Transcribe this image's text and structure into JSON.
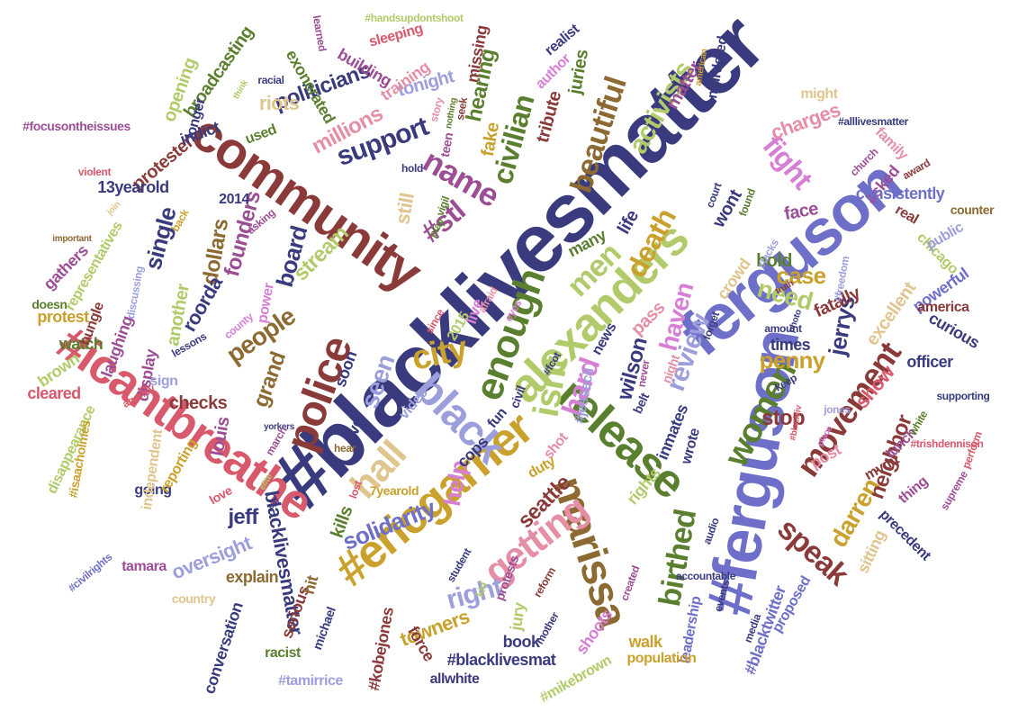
{
  "palette": {
    "navy": "#3a3b7e",
    "periwinkle": "#6d6fc9",
    "lavender": "#9d9fdd",
    "olive": "#5a7f2f",
    "lime": "#b2cb6a",
    "maroon": "#8b3a3a",
    "rose": "#d8596b",
    "pink": "#e58fa6",
    "magenta": "#9c4e95",
    "orchid": "#d67fd4",
    "gold": "#c9a12c",
    "brown": "#8c6a32",
    "tan": "#dfc58e",
    "plum": "#7b4173"
  },
  "words": [
    {
      "text": "#blacklivesmatter",
      "color": "navy"
    },
    {
      "text": "ferguson",
      "color": "periwinkle"
    },
    {
      "text": "#ferguson",
      "color": "periwinkle"
    },
    {
      "text": "community",
      "color": "maroon"
    },
    {
      "text": "#icantbreathe",
      "color": "rose"
    },
    {
      "text": "alexanders",
      "color": "lime"
    },
    {
      "text": "#ericgarner",
      "color": "gold"
    },
    {
      "text": "marissa",
      "color": "brown"
    },
    {
      "text": "release",
      "color": "olive"
    },
    {
      "text": "police",
      "color": "maroon"
    },
    {
      "text": "enough",
      "color": "olive"
    },
    {
      "text": "black",
      "color": "lavender"
    },
    {
      "text": "getting",
      "color": "pink"
    },
    {
      "text": "hall",
      "color": "tan"
    },
    {
      "text": "city",
      "color": "gold"
    },
    {
      "text": "isnt",
      "color": "lime"
    },
    {
      "text": "movement",
      "color": "maroon"
    },
    {
      "text": "women",
      "color": "olive"
    },
    {
      "text": "speak",
      "color": "maroon"
    },
    {
      "text": "birthed",
      "color": "olive"
    },
    {
      "text": "fight",
      "color": "orchid"
    },
    {
      "text": "beautiful",
      "color": "brown"
    },
    {
      "text": "civilian",
      "color": "olive"
    },
    {
      "text": "activists",
      "color": "lime"
    },
    {
      "text": "death",
      "color": "gold"
    },
    {
      "text": "men",
      "color": "lime"
    },
    {
      "text": "need",
      "color": "lime"
    },
    {
      "text": "case",
      "color": "gold"
    },
    {
      "text": "review",
      "color": "lavender"
    },
    {
      "text": "haven",
      "color": "orchid"
    },
    {
      "text": "jerrys",
      "color": "navy"
    },
    {
      "text": "penny",
      "color": "gold"
    },
    {
      "text": "hard",
      "color": "orchid"
    },
    {
      "text": "wilson",
      "color": "navy"
    },
    {
      "text": "seen",
      "color": "lavender"
    },
    {
      "text": "right",
      "color": "lavender"
    },
    {
      "text": "solidarity",
      "color": "periwinkle"
    },
    {
      "text": "seattle",
      "color": "maroon"
    },
    {
      "text": "help",
      "color": "orchid"
    },
    {
      "text": "darren",
      "color": "gold"
    },
    {
      "text": "neighbor",
      "color": "maroon"
    },
    {
      "text": "show",
      "color": "rose"
    },
    {
      "text": "stop",
      "color": "maroon"
    },
    {
      "text": "name",
      "color": "magenta"
    },
    {
      "text": "support",
      "color": "navy"
    },
    {
      "text": "millions",
      "color": "pink"
    },
    {
      "text": "politicians",
      "color": "navy"
    },
    {
      "text": "hearing",
      "color": "olive"
    },
    {
      "text": "#stl",
      "color": "magenta"
    },
    {
      "text": "single",
      "color": "navy"
    },
    {
      "text": "board",
      "color": "navy"
    },
    {
      "text": "founders",
      "color": "magenta"
    },
    {
      "text": "dollars",
      "color": "brown"
    },
    {
      "text": "stream",
      "color": "lime"
    },
    {
      "text": "still",
      "color": "tan"
    },
    {
      "text": "life",
      "color": "navy"
    },
    {
      "text": "people",
      "color": "brown"
    },
    {
      "text": "grand",
      "color": "brown"
    },
    {
      "text": "roorda",
      "color": "navy"
    },
    {
      "text": "jeff",
      "color": "navy"
    },
    {
      "text": "louis",
      "color": "magenta"
    },
    {
      "text": "oversight",
      "color": "lavender"
    },
    {
      "text": "blacklivesmatter",
      "color": "navy"
    },
    {
      "text": "#blacklivesmat",
      "color": "navy"
    },
    {
      "text": "towners",
      "color": "gold"
    },
    {
      "text": "book",
      "color": "navy"
    },
    {
      "text": "jury",
      "color": "lime"
    },
    {
      "text": "shoots",
      "color": "orchid"
    },
    {
      "text": "walk",
      "color": "gold"
    },
    {
      "text": "force",
      "color": "maroon"
    },
    {
      "text": "#kobejones",
      "color": "maroon"
    },
    {
      "text": "conversation",
      "color": "navy"
    },
    {
      "text": "explain",
      "color": "brown"
    },
    {
      "text": "serious",
      "color": "maroon"
    },
    {
      "text": "kills",
      "color": "olive"
    },
    {
      "text": "checks",
      "color": "maroon"
    },
    {
      "text": "protesters",
      "color": "maroon"
    },
    {
      "text": "13yearold",
      "color": "navy"
    },
    {
      "text": "2014",
      "color": "navy"
    },
    {
      "text": "indict",
      "color": "navy"
    },
    {
      "text": "riots",
      "color": "tan"
    },
    {
      "text": "used",
      "color": "olive"
    },
    {
      "text": "tonight",
      "color": "lavender"
    },
    {
      "text": "training",
      "color": "pink"
    },
    {
      "text": "exonerated",
      "color": "olive"
    },
    {
      "text": "opening",
      "color": "lime"
    },
    {
      "text": "broadcasting",
      "color": "olive"
    },
    {
      "text": "building",
      "color": "magenta"
    },
    {
      "text": "juries",
      "color": "olive"
    },
    {
      "text": "tribute",
      "color": "maroon"
    },
    {
      "text": "fake",
      "color": "gold"
    },
    {
      "text": "matter",
      "color": "magenta"
    },
    {
      "text": "charges",
      "color": "pink"
    },
    {
      "text": "family",
      "color": "pink"
    },
    {
      "text": "asked",
      "color": "magenta"
    },
    {
      "text": "consistently",
      "color": "periwinkle"
    },
    {
      "text": "face",
      "color": "magenta"
    },
    {
      "text": "wont",
      "color": "navy"
    },
    {
      "text": "bold",
      "color": "olive"
    },
    {
      "text": "fatally",
      "color": "maroon"
    },
    {
      "text": "crowd",
      "color": "tan"
    },
    {
      "text": "times",
      "color": "navy"
    },
    {
      "text": "officer",
      "color": "navy"
    },
    {
      "text": "excellent",
      "color": "tan"
    },
    {
      "text": "powerful",
      "color": "periwinkle"
    },
    {
      "text": "curious",
      "color": "navy"
    },
    {
      "text": "america",
      "color": "maroon"
    },
    {
      "text": "chicago",
      "color": "lime"
    },
    {
      "text": "public",
      "color": "lavender"
    },
    {
      "text": "counter",
      "color": "brown"
    },
    {
      "text": "real",
      "color": "maroon"
    },
    {
      "text": "many",
      "color": "olive"
    },
    {
      "text": "live",
      "color": "orchid"
    },
    {
      "text": "video",
      "color": "lavender"
    },
    {
      "text": "fun",
      "color": "navy"
    },
    {
      "text": "cops",
      "color": "navy"
    },
    {
      "text": "soon",
      "color": "navy"
    },
    {
      "text": "ever",
      "color": "navy"
    },
    {
      "text": "pass",
      "color": "pink"
    },
    {
      "text": "news",
      "color": "navy"
    },
    {
      "text": "inmates",
      "color": "navy"
    },
    {
      "text": "wrote",
      "color": "navy"
    },
    {
      "text": "post",
      "color": "pink"
    },
    {
      "text": "sitting",
      "color": "tan"
    },
    {
      "text": "precedent",
      "color": "navy"
    },
    {
      "text": "lunch",
      "color": "magenta"
    },
    {
      "text": "mvmt",
      "color": "maroon"
    },
    {
      "text": "leadership",
      "color": "periwinkle"
    },
    {
      "text": "proposed",
      "color": "periwinkle"
    },
    {
      "text": "#blacktwitter",
      "color": "periwinkle"
    },
    {
      "text": "population",
      "color": "gold"
    },
    {
      "text": "rights",
      "color": "lime"
    },
    {
      "text": "duty",
      "color": "gold"
    },
    {
      "text": "hit",
      "color": "brown"
    },
    {
      "text": "#tamirrice",
      "color": "lavender"
    },
    {
      "text": "racist",
      "color": "olive"
    },
    {
      "text": "allwhite",
      "color": "navy"
    },
    {
      "text": "#mikebrown",
      "color": "lime"
    },
    {
      "text": "michael",
      "color": "navy"
    },
    {
      "text": "tamara",
      "color": "magenta"
    },
    {
      "text": "country",
      "color": "tan"
    },
    {
      "text": "another",
      "color": "lime"
    },
    {
      "text": "display",
      "color": "magenta"
    },
    {
      "text": "laughing",
      "color": "magenta"
    },
    {
      "text": "protest",
      "color": "gold"
    },
    {
      "text": "watch",
      "color": "olive"
    },
    {
      "text": "sign",
      "color": "lavender"
    },
    {
      "text": "cleared",
      "color": "rose"
    },
    {
      "text": "brown",
      "color": "lime"
    },
    {
      "text": "going",
      "color": "navy"
    },
    {
      "text": "love",
      "color": "rose"
    },
    {
      "text": "reporting",
      "color": "gold"
    },
    {
      "text": "independent",
      "color": "tan"
    },
    {
      "text": "disappearance",
      "color": "lime"
    },
    {
      "text": "gathers",
      "color": "magenta"
    },
    {
      "text": "bungle",
      "color": "maroon"
    },
    {
      "text": "representatives",
      "color": "lime"
    },
    {
      "text": "doesn",
      "color": "olive"
    },
    {
      "text": "power",
      "color": "orchid"
    },
    {
      "text": "thing",
      "color": "magenta"
    },
    {
      "text": "#civilrights",
      "color": "periwinkle"
    },
    {
      "text": "#focusontheissues",
      "color": "magenta"
    },
    {
      "text": "#handsupdontshoot",
      "color": "lime"
    },
    {
      "text": "#alllivesmatter",
      "color": "navy"
    },
    {
      "text": "#trishdennison",
      "color": "rose"
    },
    {
      "text": "#isaacholmes",
      "color": "gold"
    },
    {
      "text": "#jessecli",
      "color": "lavender"
    },
    {
      "text": "#fcot",
      "color": "navy"
    },
    {
      "text": "longer",
      "color": "navy"
    },
    {
      "text": "sleeping",
      "color": "rose"
    },
    {
      "text": "missing",
      "color": "maroon"
    },
    {
      "text": "realist",
      "color": "navy"
    },
    {
      "text": "author",
      "color": "orchid"
    },
    {
      "text": "murdered",
      "color": "navy"
    },
    {
      "text": "might",
      "color": "tan"
    },
    {
      "text": "2015",
      "color": "lime"
    },
    {
      "text": "7yearold",
      "color": "gold"
    },
    {
      "text": "shot",
      "color": "pink"
    },
    {
      "text": "afraid",
      "color": "pink"
    },
    {
      "text": "civil",
      "color": "navy"
    },
    {
      "text": "belt",
      "color": "navy"
    },
    {
      "text": "night",
      "color": "pink"
    },
    {
      "text": "hold",
      "color": "navy"
    },
    {
      "text": "teen",
      "color": "magenta"
    },
    {
      "text": "seek",
      "color": "maroon"
    },
    {
      "text": "play",
      "color": "olive"
    },
    {
      "text": "vigil",
      "color": "olive"
    },
    {
      "text": "court",
      "color": "navy"
    },
    {
      "text": "church",
      "color": "magenta"
    },
    {
      "text": "found",
      "color": "olive"
    },
    {
      "text": "award",
      "color": "maroon"
    },
    {
      "text": "story",
      "color": "pink"
    },
    {
      "text": "nothing",
      "color": "olive"
    },
    {
      "text": "racial",
      "color": "navy"
    },
    {
      "text": "think",
      "color": "lime"
    },
    {
      "text": "learned",
      "color": "magenta"
    },
    {
      "text": "american",
      "color": "gold"
    },
    {
      "text": "violent",
      "color": "rose"
    },
    {
      "text": "back",
      "color": "gold"
    },
    {
      "text": "important",
      "color": "brown"
    },
    {
      "text": "join",
      "color": "tan"
    },
    {
      "text": "asking",
      "color": "magenta"
    },
    {
      "text": "discussing",
      "color": "lavender"
    },
    {
      "text": "lessons",
      "color": "navy"
    },
    {
      "text": "agency",
      "color": "rose"
    },
    {
      "text": "county",
      "color": "orchid"
    },
    {
      "text": "yorkers",
      "color": "navy"
    },
    {
      "text": "march",
      "color": "magenta"
    },
    {
      "text": "elite",
      "color": "lime"
    },
    {
      "text": "cal",
      "color": "navy"
    },
    {
      "text": "hear",
      "color": "brown"
    },
    {
      "text": "lost",
      "color": "rose"
    },
    {
      "text": "student",
      "color": "navy"
    },
    {
      "text": "kid",
      "color": "lime"
    },
    {
      "text": "protests",
      "color": "magenta"
    },
    {
      "text": "reform",
      "color": "maroon"
    },
    {
      "text": "mother",
      "color": "navy"
    },
    {
      "text": "created",
      "color": "magenta"
    },
    {
      "text": "events",
      "color": "navy"
    },
    {
      "text": "audio",
      "color": "navy"
    },
    {
      "text": "accountable",
      "color": "navy"
    },
    {
      "text": "media",
      "color": "navy"
    },
    {
      "text": "since",
      "color": "rose"
    },
    {
      "text": "eyes",
      "color": "orchid"
    },
    {
      "text": "forget",
      "color": "navy"
    },
    {
      "text": "never",
      "color": "magenta"
    },
    {
      "text": "amount",
      "color": "navy"
    },
    {
      "text": "jones",
      "color": "lavender"
    },
    {
      "text": "keep",
      "color": "navy"
    },
    {
      "text": "supporting",
      "color": "navy"
    },
    {
      "text": "perform",
      "color": "rose"
    },
    {
      "text": "supreme",
      "color": "magenta"
    },
    {
      "text": "white",
      "color": "olive"
    },
    {
      "text": "stacks",
      "color": "lavender"
    },
    {
      "text": "truth",
      "color": "maroon"
    },
    {
      "text": "photo",
      "color": "navy"
    },
    {
      "text": "place",
      "color": "orchid"
    },
    {
      "text": "#blackliv",
      "color": "rose"
    },
    {
      "text": "#freedom",
      "color": "lavender"
    }
  ]
}
